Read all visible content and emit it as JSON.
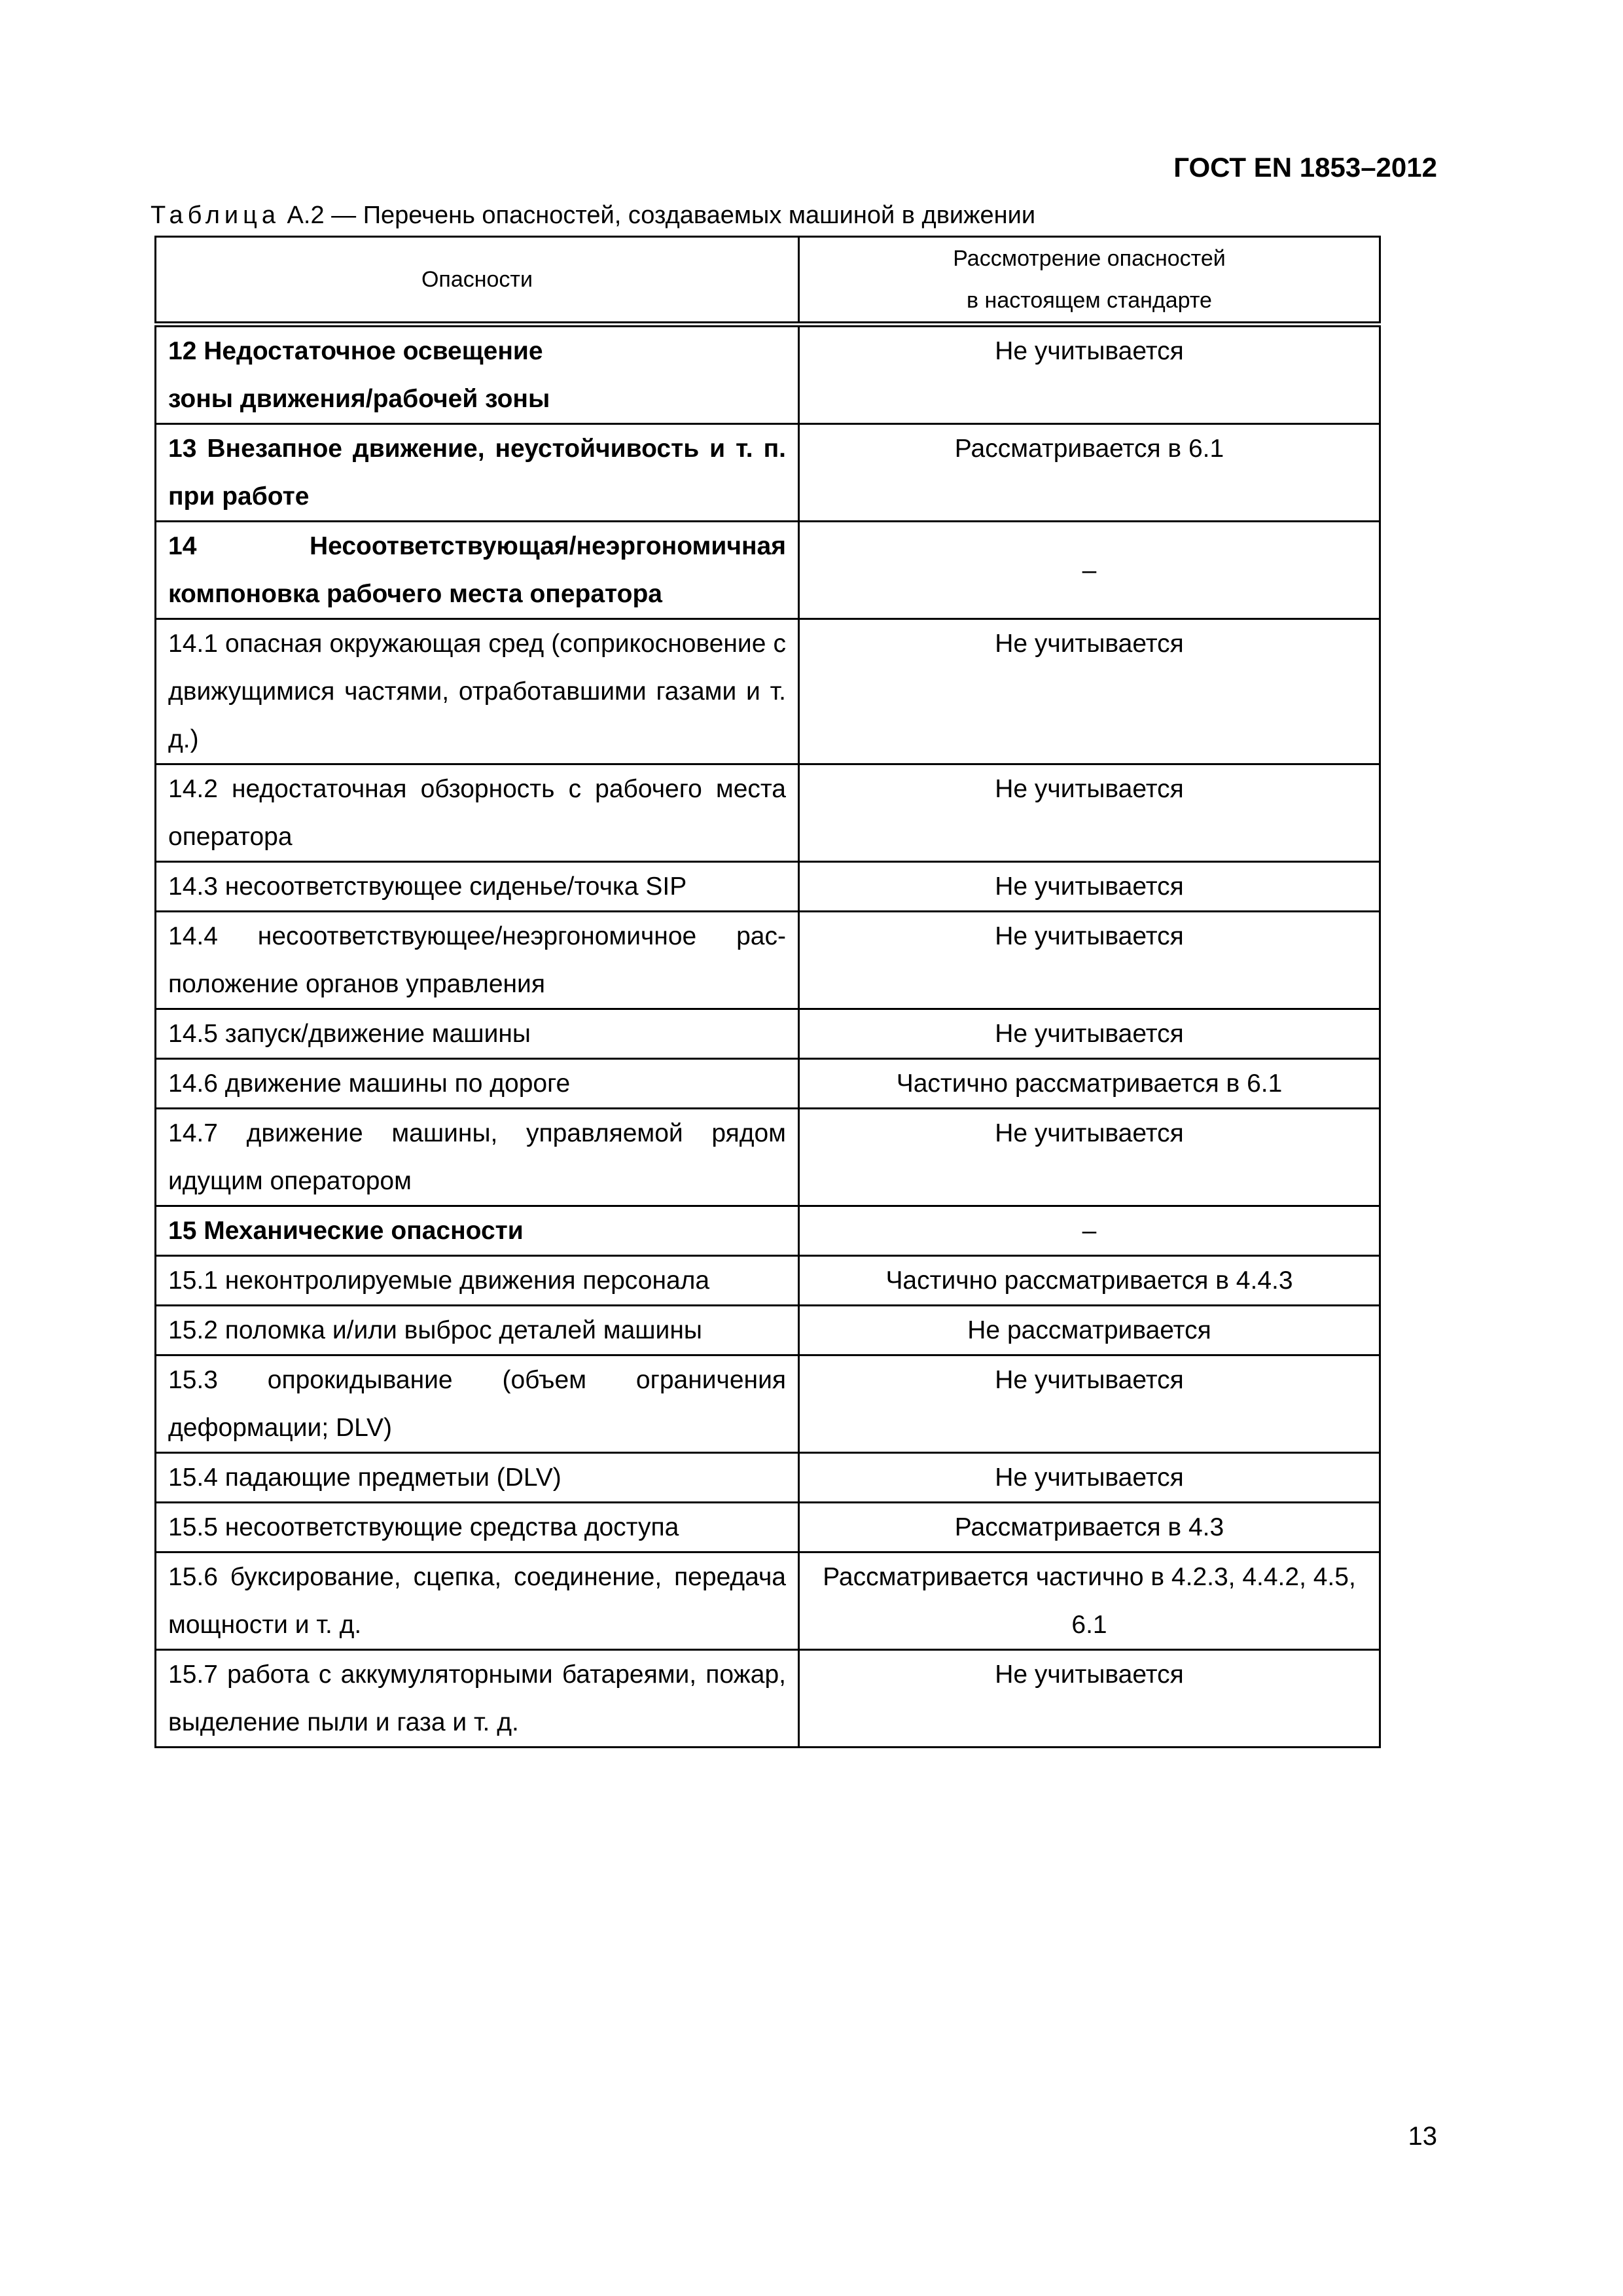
{
  "header": {
    "doc_code": "ГОСТ EN 1853–2012"
  },
  "caption": {
    "label": "Таблица",
    "text": " А.2 — Перечень опасностей, создаваемых машиной в движении"
  },
  "table": {
    "columns": [
      "Опасности",
      "Рассмотрение опасностей в настоящем стандарте"
    ],
    "rows": [
      {
        "hazard": "12 Недостаточное освещение зоны движения/рабочей зоны",
        "consideration": "Не учитывается",
        "bold": true
      },
      {
        "hazard": "13 Внезапное движение, неустойчивость и т. п. при работе",
        "consideration": "Рассматривается в 6.1",
        "bold": true
      },
      {
        "hazard": "14 Несоответствующая/неэргономичная компоновка рабочего места оператора",
        "consideration": "–",
        "bold": true
      },
      {
        "hazard": "14.1 опасная окружающая сред (соприкосновение с движущимися частями, отработавшими газами и т. д.)",
        "consideration": "Не учитывается"
      },
      {
        "hazard": "14.2 недостаточная обзорность с рабочего места оператора",
        "consideration": "Не учитывается"
      },
      {
        "hazard": "14.3 несоответствующее сиденье/точка SIP",
        "consideration": "Не учитывается"
      },
      {
        "hazard": "14.4 несоответствующее/неэргономичное рас­положение органов управления",
        "consideration": "Не учитывается"
      },
      {
        "hazard": "14.5 запуск/движение машины",
        "consideration": "Не учитывается"
      },
      {
        "hazard": "14.6 движение машины по дороге",
        "consideration": "Частично  рассматривается в 6.1"
      },
      {
        "hazard": "14.7 движение машины, управляемой рядом идущим оператором",
        "consideration": "Не учитывается"
      },
      {
        "hazard": "15 Механические опасности",
        "consideration": "–",
        "bold": true
      },
      {
        "hazard": "15.1 неконтролируемые движения персонала",
        "consideration": "Частично рассматривается в 4.4.3"
      },
      {
        "hazard": "15.2 поломка и/или выброс деталей машины",
        "consideration": "Не рассматривается"
      },
      {
        "hazard": "15.3 опрокидывание (объем ограничения деформации; DLV)",
        "consideration": "Не учитывается"
      },
      {
        "hazard": "15.4 падающие предметыи (DLV)",
        "consideration": "Не учитывается"
      },
      {
        "hazard": "15.5 несоответствующие средства доступа",
        "consideration": "Рассматривается в 4.3"
      },
      {
        "hazard": "15.6 буксирование, сцепка, соединение, передача мощности и т. д.",
        "consideration": "Рассматривается частично в 4.2.3, 4.4.2, 4.5, 6.1"
      },
      {
        "hazard": "15.7 работа с аккумуляторными батареями, пожар, выделение пыли и газа и т. д.",
        "consideration": "Не учитывается"
      }
    ]
  },
  "footer": {
    "page_number": "13"
  }
}
